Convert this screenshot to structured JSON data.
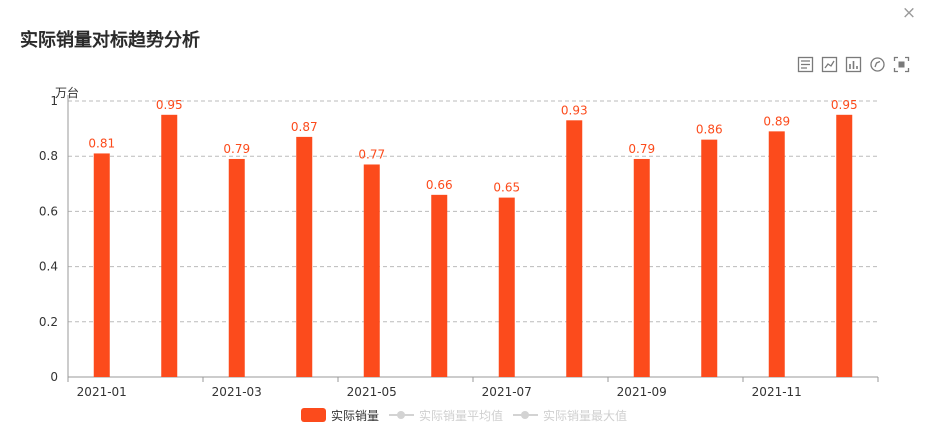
{
  "panel": {
    "title": "实际销量对标趋势分析",
    "close_label": "×"
  },
  "toolbox": {
    "icons": [
      "data-view-icon",
      "line-chart-icon",
      "bar-chart-icon",
      "restore-icon",
      "save-image-icon"
    ]
  },
  "colors": {
    "bar": "#fc4b1c",
    "label": "#fc4b1c",
    "axis": "#999999",
    "grid": "#bbbbbb",
    "legend_inactive": "#cfcfcf"
  },
  "chart_data": {
    "type": "bar",
    "ylabel": "万台",
    "ylim": [
      0,
      1
    ],
    "yticks": [
      "0",
      "0.2",
      "0.4",
      "0.6",
      "0.8",
      "1"
    ],
    "ytick_values": [
      0,
      0.2,
      0.4,
      0.6,
      0.8,
      1
    ],
    "categories": [
      "2021-01",
      "2021-02",
      "2021-03",
      "2021-04",
      "2021-05",
      "2021-06",
      "2021-07",
      "2021-08",
      "2021-09",
      "2021-10",
      "2021-11",
      "2021-12"
    ],
    "xtick_labels": [
      "2021-01",
      "",
      "2021-03",
      "",
      "2021-05",
      "",
      "2021-07",
      "",
      "2021-09",
      "",
      "2021-11",
      ""
    ],
    "grid": true,
    "series": [
      {
        "name": "实际销量",
        "values": [
          0.81,
          0.95,
          0.79,
          0.87,
          0.77,
          0.66,
          0.65,
          0.93,
          0.79,
          0.86,
          0.89,
          0.95
        ],
        "labels": [
          "0.81",
          "0.95",
          "0.79",
          "0.87",
          "0.77",
          "0.66",
          "0.65",
          "0.93",
          "0.79",
          "0.86",
          "0.89",
          "0.95"
        ]
      }
    ],
    "legend_placement": "bottom-center",
    "legend": [
      {
        "name": "实际销量",
        "shape": "bar",
        "active": true
      },
      {
        "name": "实际销量平均值",
        "shape": "line",
        "active": false
      },
      {
        "name": "实际销量最大值",
        "shape": "line",
        "active": false
      }
    ]
  }
}
